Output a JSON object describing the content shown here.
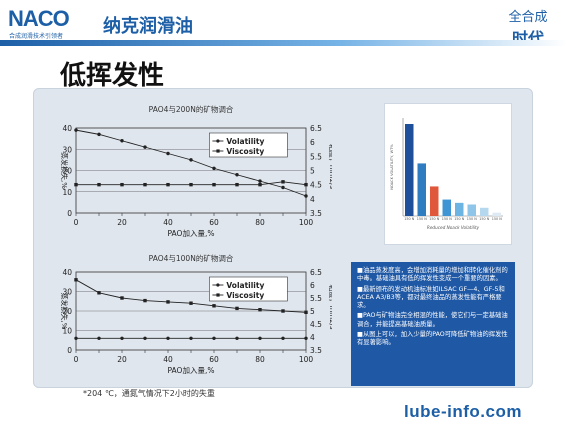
{
  "header": {
    "brand_logo": "NACO",
    "brand_sub": "合成润滑技术引领者",
    "brand_cn": "纳克润滑油",
    "slogan_line1": "全合成",
    "slogan_line2": "时代"
  },
  "page": {
    "title": "低挥发性",
    "footnote": "*204 ℃，通氮气情况下2小时的失重",
    "url": "lube-info.com"
  },
  "colors": {
    "brand": "#1d5fa7",
    "note_bg": "#1f58a5",
    "panel": "#dfe6ee"
  },
  "chart_data": [
    {
      "type": "line",
      "title": "PAO4与200N的矿物调合",
      "xlabel": "PAO加入量,%",
      "ylabel_left": "蒸发损失,%",
      "ylabel_right": "粘度，mm2/s",
      "x": [
        0,
        10,
        20,
        30,
        40,
        50,
        60,
        70,
        80,
        90,
        100
      ],
      "xticks": [
        "0",
        "10",
        "20",
        "30",
        "40",
        "50",
        "60",
        "70",
        "80",
        "90",
        "100"
      ],
      "xticks_shown": [
        "0",
        "20",
        "40",
        "60",
        "80",
        "100"
      ],
      "ylim_left": [
        0,
        40
      ],
      "yticks_left": [
        "0",
        "10",
        "20",
        "30",
        "40"
      ],
      "ylim_right": [
        3.5,
        6.5
      ],
      "yticks_right": [
        "3.5",
        "4",
        "4.5",
        "5",
        "5.5",
        "6",
        "6.5"
      ],
      "legend": [
        "Volatility",
        "Viscosity"
      ],
      "series": [
        {
          "name": "Volatility",
          "axis": "left",
          "values": [
            39,
            37,
            34,
            31,
            28,
            25,
            21,
            18,
            15,
            12,
            8
          ]
        },
        {
          "name": "Viscosity",
          "axis": "right",
          "values": [
            4.5,
            4.5,
            4.5,
            4.5,
            4.5,
            4.5,
            4.5,
            4.5,
            4.5,
            4.6,
            4.5
          ]
        }
      ]
    },
    {
      "type": "line",
      "title": "PAO4与100N的矿物调合",
      "xlabel": "PAO加入量,%",
      "ylabel_left": "蒸发损失,%",
      "ylabel_right": "粘度，mm2/s",
      "x": [
        0,
        10,
        20,
        30,
        40,
        50,
        60,
        70,
        80,
        90,
        100
      ],
      "xticks": [
        "0",
        "10",
        "20",
        "30",
        "40",
        "50",
        "60",
        "70",
        "80",
        "90",
        "100"
      ],
      "xticks_shown": [
        "0",
        "20",
        "40",
        "60",
        "80",
        "100"
      ],
      "ylim_left": [
        0,
        40
      ],
      "yticks_left": [
        "0",
        "10",
        "20",
        "30",
        "40"
      ],
      "ylim_right": [
        3.5,
        6.5
      ],
      "yticks_right": [
        "3.5",
        "4",
        "4.5",
        "5",
        "5.5",
        "6",
        "6.5"
      ],
      "legend": [
        "Volatility",
        "Viscosity"
      ],
      "series": [
        {
          "name": "Volatility",
          "axis": "left",
          "values": [
            6,
            6,
            6,
            6,
            6,
            6,
            6,
            6,
            6,
            6,
            6
          ]
        },
        {
          "name": "Viscosity",
          "axis": "right",
          "values": [
            6.2,
            5.7,
            5.5,
            5.4,
            5.35,
            5.3,
            5.2,
            5.1,
            5.05,
            5.0,
            4.95
          ]
        }
      ]
    },
    {
      "type": "bar",
      "title": "Reduced Noack Volatility",
      "ylabel": "NOACK VOLATILITY, WT%",
      "categories": [
        "150 N",
        "150 N",
        "150 N",
        "150 N",
        "150 N",
        "150 N",
        "150 N",
        "150 N"
      ],
      "values": [
        28,
        16,
        9,
        5,
        4,
        3.5,
        2.5,
        1
      ],
      "colors": [
        "#1d4f9a",
        "#2f7cc1",
        "#e0583b",
        "#3f94d3",
        "#6cb5e3",
        "#8fc5e8",
        "#b5d8ef",
        "#dde9f3"
      ]
    }
  ],
  "note": {
    "bullets": [
      "■油品蒸发度高，会增加消耗量的增加和转化催化剂的中毒。基础油具有低的挥发性变成一个重要的因素。",
      "■最新颁布的发动机油标准如ILSAC GF—4、GF-5和ACEA A3/B3等，都对最终油品的蒸发性能有严格要求。",
      "■PAO与矿物油完全相混的性能，使它们与一定基础油调合，并能提高基础油质量。",
      "■从图上可以，加入少量的PAO可降低矿物油的挥发性有显著影响。"
    ]
  }
}
